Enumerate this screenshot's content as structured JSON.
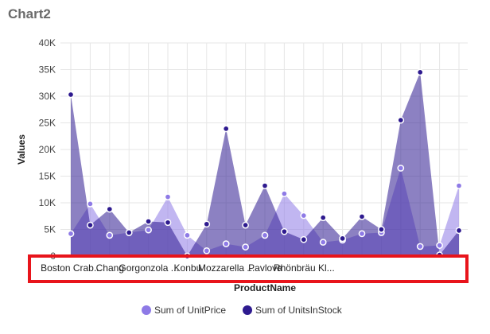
{
  "page": {
    "title": "Chart2"
  },
  "colors": {
    "unitprice": "#8e7ae6",
    "unitsinstock": "#2e1a8f",
    "highlight": "#e8141b",
    "grid": "#e6e6e6"
  },
  "chart_data": {
    "type": "area",
    "title": "Chart2",
    "xlabel": "ProductName",
    "ylabel": "Values",
    "ylim": [
      0,
      40000
    ],
    "yticks": [
      0,
      5000,
      10000,
      15000,
      20000,
      25000,
      30000,
      35000,
      40000
    ],
    "ytick_labels": [
      "0",
      "5K",
      "10K",
      "15K",
      "20K",
      "25K",
      "30K",
      "35K",
      "40K"
    ],
    "xtick_labels": [
      "Boston Crab...",
      "Chang",
      "Gorgonzola ...",
      "Konbu",
      "Mozzarella ...",
      "Pavlova",
      "Rhönbräu Kl..."
    ],
    "xtick_indices": [
      0,
      2,
      4,
      6,
      8,
      10,
      12
    ],
    "grid": true,
    "legend_position": "bottom",
    "series": [
      {
        "name": "Sum of UnitPrice",
        "values": [
          4200,
          9800,
          3900,
          4400,
          4900,
          11100,
          3900,
          1000,
          2300,
          1700,
          3900,
          11700,
          7600,
          2600,
          3000,
          4200,
          4400,
          16500,
          1800,
          2000,
          13200
        ]
      },
      {
        "name": "Sum of UnitsInStock",
        "values": [
          30300,
          5800,
          8800,
          4400,
          6500,
          6300,
          0,
          6000,
          23900,
          5800,
          13200,
          4600,
          3100,
          7200,
          3300,
          7400,
          5000,
          25500,
          34500,
          200,
          4800
        ]
      }
    ]
  }
}
